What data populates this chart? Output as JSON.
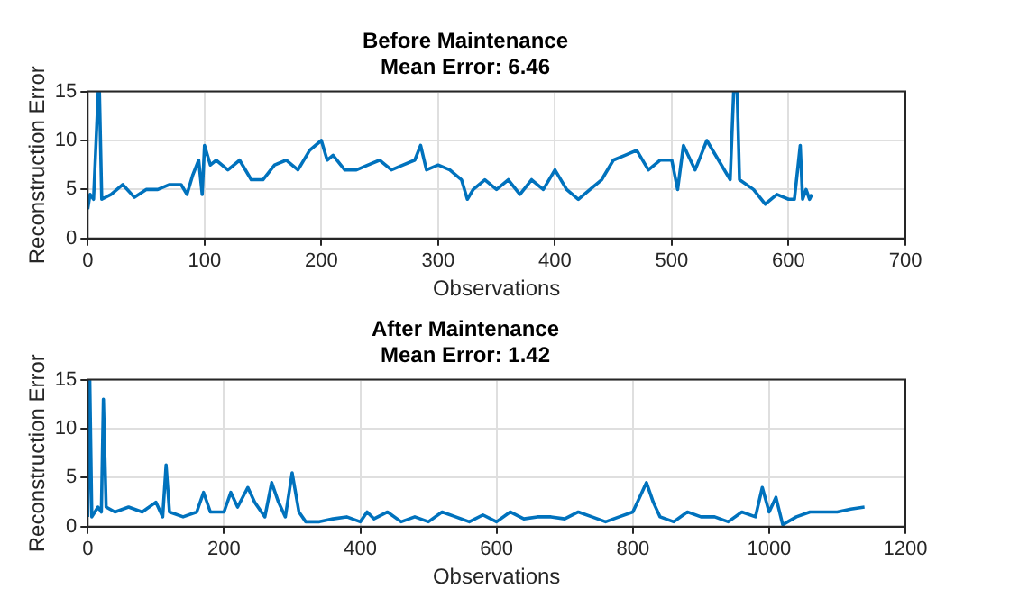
{
  "chart_data": [
    {
      "type": "line",
      "title": "Before Maintenance\nMean Error: 6.46",
      "xlabel": "Observations",
      "ylabel": "Reconstruction Error",
      "xlim": [
        0,
        700
      ],
      "xticks": [
        0,
        100,
        200,
        300,
        400,
        500,
        600,
        700
      ],
      "ylim": [
        0,
        15
      ],
      "yticks": [
        0,
        5,
        10,
        15
      ],
      "grid": true,
      "legend": false,
      "marker": "none",
      "line_style": "solid",
      "series": [
        {
          "color": "#0072bd",
          "x": [
            0,
            2,
            5,
            9,
            10,
            12,
            20,
            30,
            40,
            50,
            60,
            70,
            80,
            85,
            90,
            95,
            98,
            100,
            105,
            110,
            120,
            130,
            140,
            150,
            160,
            170,
            180,
            190,
            200,
            205,
            210,
            220,
            230,
            240,
            250,
            260,
            270,
            280,
            285,
            290,
            300,
            310,
            320,
            325,
            330,
            340,
            350,
            360,
            370,
            380,
            390,
            400,
            410,
            420,
            430,
            440,
            450,
            460,
            470,
            480,
            490,
            500,
            505,
            510,
            520,
            530,
            540,
            550,
            553,
            556,
            558,
            570,
            580,
            590,
            600,
            605,
            610,
            612,
            615,
            618,
            620
          ],
          "values": [
            3,
            4.5,
            4,
            15,
            15,
            4,
            4.5,
            5.5,
            4.2,
            5,
            5,
            5.5,
            5.5,
            4.5,
            6.5,
            8,
            4.5,
            9.5,
            7.5,
            8,
            7,
            8,
            6,
            6,
            7.5,
            8,
            7,
            9,
            10,
            8,
            8.5,
            7,
            7,
            7.5,
            8,
            7,
            7.5,
            8,
            9.5,
            7,
            7.5,
            7,
            6,
            4,
            5,
            6,
            5,
            6,
            4.5,
            6,
            5,
            7,
            5,
            4,
            5,
            6,
            8,
            8.5,
            9,
            7,
            8,
            8,
            5,
            9.5,
            7,
            10,
            8,
            6,
            15,
            15,
            6,
            5,
            3.5,
            4.5,
            4,
            4,
            9.5,
            4,
            5,
            4,
            4.5
          ]
        }
      ]
    },
    {
      "type": "line",
      "title": "After Maintenance\nMean Error: 1.42",
      "xlabel": "Observations",
      "ylabel": "Reconstruction Error",
      "xlim": [
        0,
        1200
      ],
      "xticks": [
        0,
        200,
        400,
        600,
        800,
        1000,
        1200
      ],
      "ylim": [
        0,
        15
      ],
      "yticks": [
        0,
        5,
        10,
        15
      ],
      "grid": true,
      "legend": false,
      "marker": "none",
      "line_style": "solid",
      "series": [
        {
          "color": "#0072bd",
          "x": [
            0,
            3,
            6,
            15,
            20,
            23,
            27,
            40,
            60,
            80,
            100,
            110,
            115,
            120,
            140,
            160,
            170,
            180,
            200,
            210,
            220,
            235,
            245,
            260,
            270,
            280,
            290,
            300,
            310,
            320,
            340,
            360,
            380,
            400,
            410,
            420,
            440,
            460,
            480,
            500,
            520,
            540,
            560,
            580,
            600,
            620,
            640,
            660,
            680,
            700,
            720,
            740,
            760,
            780,
            800,
            810,
            820,
            830,
            840,
            860,
            880,
            900,
            920,
            940,
            960,
            980,
            990,
            1000,
            1010,
            1020,
            1040,
            1060,
            1080,
            1100,
            1120,
            1140
          ],
          "values": [
            1,
            15,
            1,
            2,
            1.5,
            13,
            2,
            1.5,
            2,
            1.5,
            2.5,
            1,
            6.3,
            1.5,
            1,
            1.5,
            3.5,
            1.5,
            1.5,
            3.5,
            2,
            4,
            2.5,
            1,
            4.5,
            2.5,
            1,
            5.5,
            1.5,
            0.5,
            0.5,
            0.8,
            1,
            0.5,
            1.5,
            0.8,
            1.5,
            0.5,
            1,
            0.5,
            1.5,
            1,
            0.5,
            1.2,
            0.5,
            1.5,
            0.8,
            1,
            1,
            0.8,
            1.5,
            1,
            0.5,
            1,
            1.5,
            3,
            4.5,
            2.5,
            1,
            0.5,
            1.5,
            1,
            1,
            0.5,
            1.5,
            1,
            4,
            1.5,
            3,
            0.2,
            1,
            1.5,
            1.5,
            1.5,
            1.8,
            2
          ]
        }
      ]
    }
  ]
}
